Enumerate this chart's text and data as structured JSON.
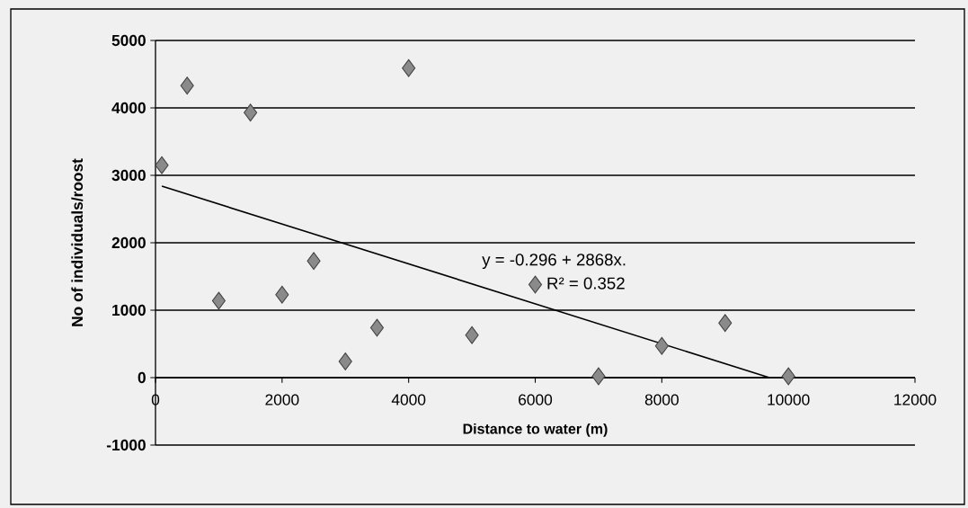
{
  "chart_data": {
    "type": "scatter",
    "xlabel": "Distance to water (m)",
    "ylabel": "No of individuals/roost",
    "xlim": [
      0,
      12000
    ],
    "ylim": [
      -1000,
      5000
    ],
    "xticks": [
      0,
      2000,
      4000,
      6000,
      8000,
      10000,
      12000
    ],
    "yticks": [
      -1000,
      0,
      1000,
      2000,
      3000,
      4000,
      5000
    ],
    "grid": "y",
    "marker": "diamond",
    "series": [
      {
        "color": "#8a8a8a",
        "x": [
          100,
          500,
          1000,
          1500,
          2000,
          2500,
          3000,
          3500,
          4000,
          5000,
          6000,
          7000,
          8000,
          9000,
          10000
        ],
        "values": [
          3150,
          4330,
          1140,
          3930,
          1230,
          1730,
          240,
          740,
          4590,
          630,
          1380,
          20,
          470,
          810,
          20
        ]
      },
      {
        "type": "line",
        "color": "#000000",
        "marker": "none",
        "line_style": "solid",
        "x": [
          100,
          9700
        ],
        "values": [
          2840,
          0
        ]
      }
    ],
    "annotations": [
      "y = -0.296 + 2868x.",
      "R² = 0.352"
    ]
  }
}
